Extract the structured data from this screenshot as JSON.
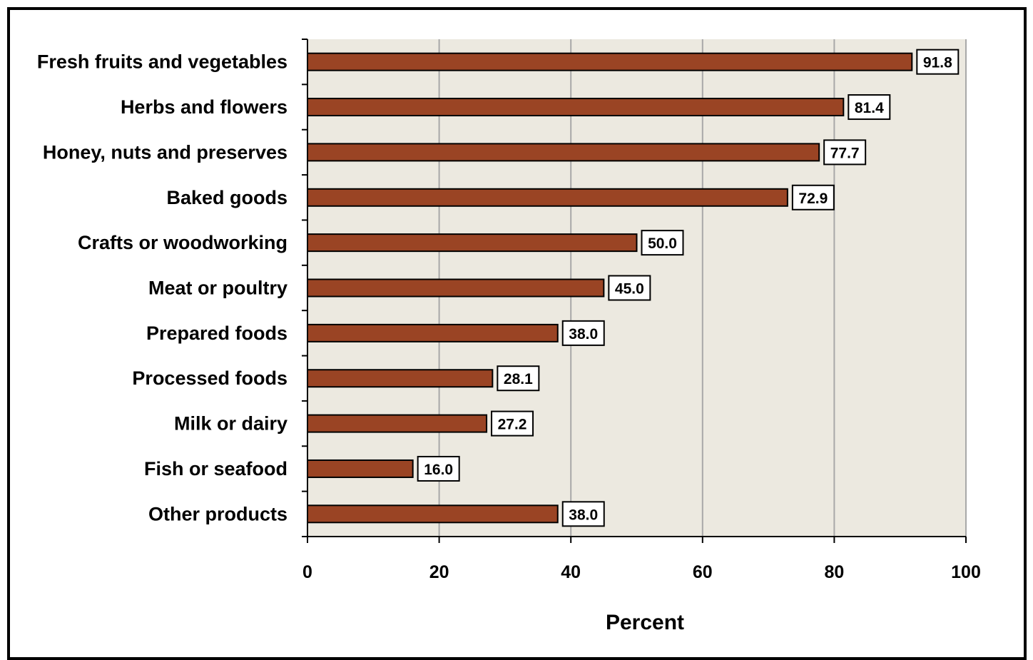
{
  "chart_data": {
    "type": "bar",
    "orientation": "horizontal",
    "categories": [
      "Fresh fruits  and vegetables",
      "Herbs and flowers",
      "Honey, nuts and preserves",
      "Baked goods",
      "Crafts or woodworking",
      "Meat or poultry",
      "Prepared foods",
      "Processed foods",
      "Milk or dairy",
      "Fish or seafood",
      "Other products"
    ],
    "values": [
      91.8,
      81.4,
      77.7,
      72.9,
      50.0,
      45.0,
      38.0,
      28.1,
      27.2,
      16.0,
      38.0
    ],
    "data_labels": [
      "91.8",
      "81.4",
      "77.7",
      "72.9",
      "50.0",
      "45.0",
      "38.0",
      "28.1",
      "27.2",
      "16.0",
      "38.0"
    ],
    "title": "",
    "xlabel": "Percent",
    "ylabel": "",
    "xlim": [
      0,
      100
    ],
    "xticks": [
      0,
      20,
      40,
      60,
      80,
      100
    ],
    "grid": true,
    "legend": "none",
    "colors": {
      "bar": "#9a4424",
      "bar_stroke": "#000000",
      "plot_background": "#ece9e0",
      "gridline": "#a8a8a8"
    }
  }
}
